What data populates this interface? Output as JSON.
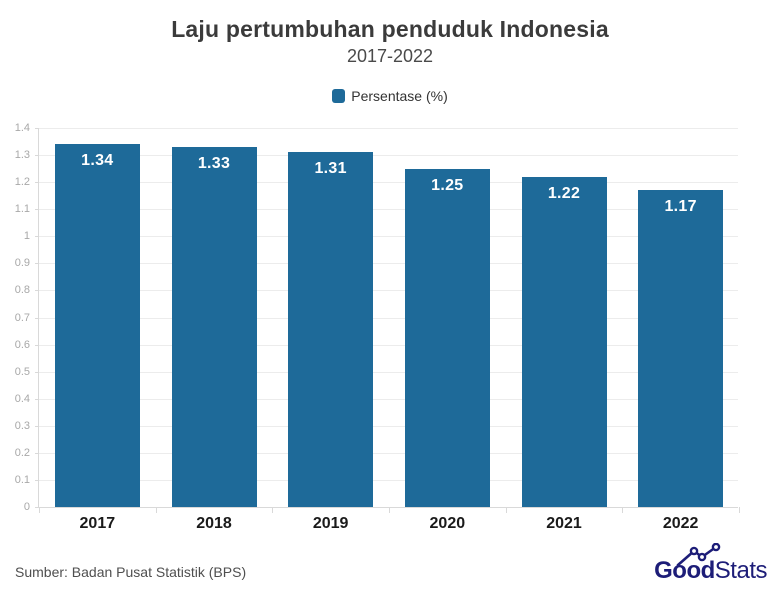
{
  "header": {
    "title": "Laju pertumbuhan penduduk Indonesia",
    "subtitle": "2017-2022"
  },
  "legend": {
    "label": "Persentase (%)"
  },
  "chart_data": {
    "type": "bar",
    "title": "Laju pertumbuhan penduduk Indonesia",
    "subtitle": "2017-2022",
    "categories": [
      "2017",
      "2018",
      "2019",
      "2020",
      "2021",
      "2022"
    ],
    "values": [
      1.34,
      1.33,
      1.31,
      1.25,
      1.22,
      1.17
    ],
    "value_labels": [
      "1.34",
      "1.33",
      "1.31",
      "1.25",
      "1.22",
      "1.17"
    ],
    "series_name": "Persentase (%)",
    "xlabel": "",
    "ylabel": "",
    "ylim": [
      0,
      1.4
    ],
    "ytick_step": 0.1,
    "grid": true,
    "legend_position": "top",
    "bar_color": "#1E6A99"
  },
  "colors": {
    "bar": "#1E6A99",
    "grid": "#ECECEC",
    "axis": "#D9D9D9",
    "logo_navy": "#1D1D78"
  },
  "footer": {
    "source": "Sumber: Badan Pusat Statistik (BPS)",
    "logo": {
      "bold": "Good",
      "light": "Stats"
    }
  }
}
